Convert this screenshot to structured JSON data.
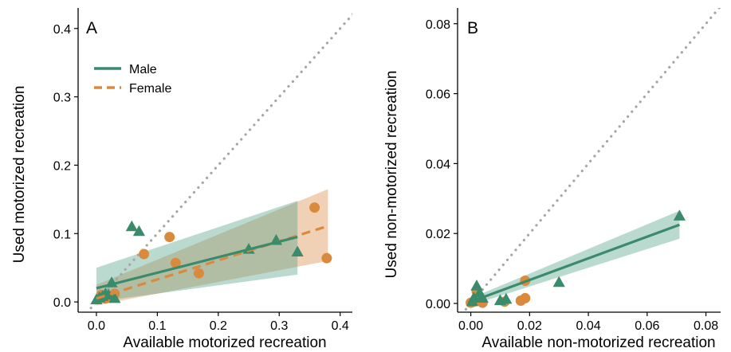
{
  "colors": {
    "male": "#3a8a6c",
    "female": "#d98a3d",
    "male_band": "#5aa58c",
    "female_band": "#e3a36b",
    "identity_line": "#a6a6a6"
  },
  "chart_data": [
    {
      "type": "scatter",
      "panel_label": "A",
      "xlabel": "Available motorized recreation",
      "ylabel": "Used motorized recreation",
      "xlim": [
        -0.03,
        0.42
      ],
      "ylim": [
        -0.015,
        0.43
      ],
      "xticks": [
        0.0,
        0.1,
        0.2,
        0.3,
        0.4
      ],
      "yticks": [
        0.0,
        0.1,
        0.2,
        0.3,
        0.4
      ],
      "xtick_labels": [
        "0.0",
        "0.1",
        "0.2",
        "0.3",
        "0.4"
      ],
      "ytick_labels": [
        "0.0",
        "0.1",
        "0.2",
        "0.3",
        "0.4"
      ],
      "identity_line": true,
      "legend": {
        "position": "top-left",
        "entries": [
          {
            "label": "Male",
            "series": "male",
            "style": "solid"
          },
          {
            "label": "Female",
            "series": "female",
            "style": "dashed"
          }
        ]
      },
      "series": [
        {
          "key": "male",
          "marker": "triangle",
          "line_style": "solid",
          "points": [
            [
              0.0,
              0.003
            ],
            [
              0.005,
              0.006
            ],
            [
              0.01,
              0.008
            ],
            [
              0.015,
              0.012
            ],
            [
              0.02,
              0.01
            ],
            [
              0.025,
              0.028
            ],
            [
              0.03,
              0.005
            ],
            [
              0.058,
              0.11
            ],
            [
              0.07,
              0.103
            ],
            [
              0.25,
              0.077
            ],
            [
              0.295,
              0.09
            ],
            [
              0.33,
              0.073
            ]
          ],
          "fit_x": [
            0.0,
            0.33
          ],
          "fit_y": [
            0.02,
            0.095
          ],
          "band_lower_y": [
            0.0,
            0.04
          ],
          "band_upper_y": [
            0.05,
            0.148
          ]
        },
        {
          "key": "female",
          "marker": "circle",
          "line_style": "dashed",
          "points": [
            [
              0.005,
              0.005
            ],
            [
              0.008,
              0.01
            ],
            [
              0.015,
              0.005
            ],
            [
              0.02,
              0.008
            ],
            [
              0.03,
              0.012
            ],
            [
              0.078,
              0.07
            ],
            [
              0.12,
              0.095
            ],
            [
              0.13,
              0.057
            ],
            [
              0.168,
              0.042
            ],
            [
              0.358,
              0.138
            ],
            [
              0.378,
              0.064
            ]
          ],
          "fit_x": [
            0.0,
            0.38
          ],
          "fit_y": [
            0.005,
            0.111
          ],
          "band_lower_y": [
            -0.005,
            0.06
          ],
          "band_upper_y": [
            0.025,
            0.165
          ]
        }
      ]
    },
    {
      "type": "scatter",
      "panel_label": "B",
      "xlabel": "Available non-motorized recreation",
      "ylabel": "Used non-motorized recreation",
      "xlim": [
        -0.0045,
        0.085
      ],
      "ylim": [
        -0.0025,
        0.0845
      ],
      "xticks": [
        0.0,
        0.02,
        0.04,
        0.06,
        0.08
      ],
      "yticks": [
        0.0,
        0.02,
        0.04,
        0.06,
        0.08
      ],
      "xtick_labels": [
        "0.00",
        "0.02",
        "0.04",
        "0.06",
        "0.08"
      ],
      "ytick_labels": [
        "0.00",
        "0.02",
        "0.04",
        "0.06",
        "0.08"
      ],
      "identity_line": true,
      "series": [
        {
          "key": "male",
          "marker": "triangle",
          "line_style": "solid",
          "points": [
            [
              0.0005,
              0.0005
            ],
            [
              0.001,
              0.0015
            ],
            [
              0.002,
              0.005
            ],
            [
              0.003,
              0.003
            ],
            [
              0.004,
              0.0015
            ],
            [
              0.01,
              0.0008
            ],
            [
              0.012,
              0.0012
            ],
            [
              0.03,
              0.006
            ],
            [
              0.071,
              0.025
            ]
          ],
          "fit_x": [
            0.0,
            0.071
          ],
          "fit_y": [
            0.0005,
            0.0225
          ],
          "band_lower_y": [
            -0.0005,
            0.0185
          ],
          "band_upper_y": [
            0.0015,
            0.0265
          ]
        },
        {
          "key": "female",
          "marker": "circle",
          "line_style": "none",
          "points": [
            [
              0.0,
              0.0002
            ],
            [
              0.001,
              0.0005
            ],
            [
              0.002,
              0.0035
            ],
            [
              0.003,
              0.0008
            ],
            [
              0.004,
              0.0002
            ],
            [
              0.0115,
              0.0005
            ],
            [
              0.017,
              0.0008
            ],
            [
              0.0185,
              0.0015
            ],
            [
              0.0185,
              0.0065
            ]
          ]
        }
      ]
    }
  ]
}
